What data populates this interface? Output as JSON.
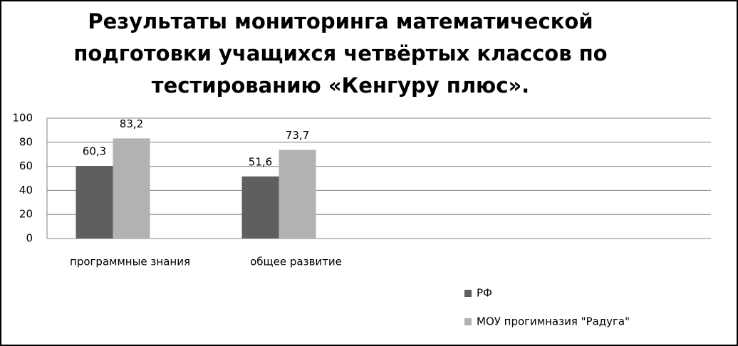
{
  "chart_data": {
    "type": "bar",
    "title": [
      "Результаты мониторинга математической",
      "подготовки учащихся четвёртых классов по",
      "тестированию «Кенгуру плюс»."
    ],
    "categories": [
      "программные знания",
      "общее развитие",
      null,
      null
    ],
    "series": [
      {
        "name": "РФ",
        "color": "#5f5f5f",
        "values": [
          60.3,
          51.6,
          null,
          null
        ],
        "value_labels": [
          "60,3",
          "51,6",
          null,
          null
        ]
      },
      {
        "name": "МОУ прогимназия \"Радуга\"",
        "color": "#b2b2b2",
        "values": [
          83.2,
          73.7,
          null,
          null
        ],
        "value_labels": [
          "83,2",
          "73,7",
          null,
          null
        ]
      }
    ],
    "ylim": [
      0,
      100
    ],
    "yticks": [
      0,
      20,
      40,
      60,
      80,
      100
    ],
    "grid": true,
    "legend": "bottom-right"
  }
}
